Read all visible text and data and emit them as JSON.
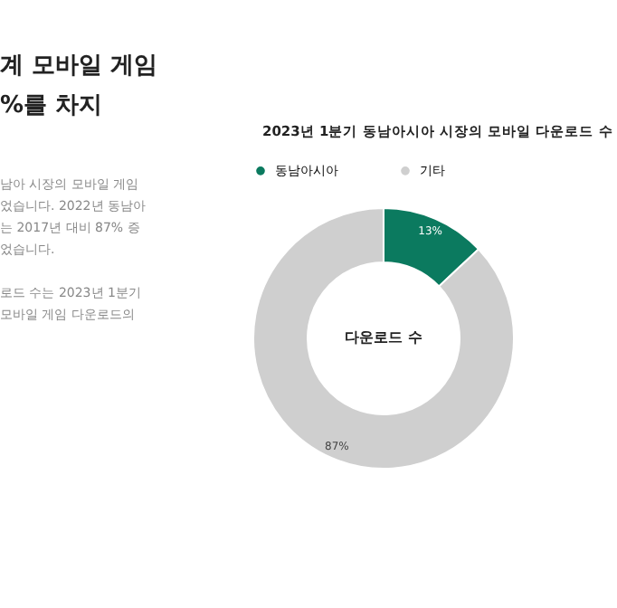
{
  "chart_data": {
    "type": "donut",
    "title": "2023년 1분기 동남아시아 시장의 모바일 다운로드 수",
    "categories": [
      "동남아시아",
      "기타"
    ],
    "values": [
      13,
      87
    ],
    "colors": [
      "#0b7a5f",
      "#cfcfcf"
    ],
    "value_labels": [
      "13%",
      "87%"
    ],
    "legend": "top left",
    "annotations": [
      "다운로드 수",
      "계 모바일 게임",
      "%를 차지",
      "남아 시장의 모바일 게임",
      "었습니다. 2022년 동남아",
      "는 2017년 대비 87% 증",
      "었습니다.",
      "로드 수는 2023년 1분기",
      "모바일 게임 다운로드의"
    ]
  }
}
